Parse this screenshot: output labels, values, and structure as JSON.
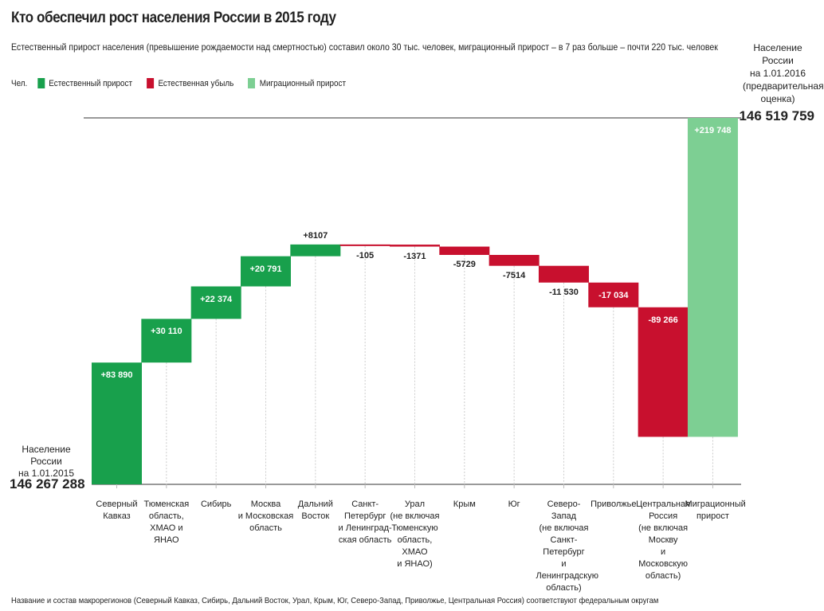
{
  "chart_data": {
    "type": "waterfall",
    "title": "Кто обеспечил рост населения России в 2015 году",
    "subtitle": "Естественный прирост населения (превышение рождаемости над смертностью) составил около 30 тыс. человек, миграционный прирост – в 7 раз больше – почти 220 тыс. человек",
    "unit_label": "Чел.",
    "legend": [
      {
        "label": "Естественный прирост",
        "color": "#18a04c"
      },
      {
        "label": "Естественная убыль",
        "color": "#c8102e"
      },
      {
        "label": "Миграционный прирост",
        "color": "#7dcf93"
      }
    ],
    "start": {
      "label": "Население России\nна 1.01.2015",
      "value": 146267288,
      "value_text": "146 267 288"
    },
    "end": {
      "label": "Население России\nна 1.01.2016\n(предварительная\nоценка)",
      "value": 146519759,
      "value_text": "146 519 759"
    },
    "categories": [
      {
        "label": "Северный\nКавказ",
        "value": 83890,
        "text": "+83 890",
        "kind": 0
      },
      {
        "label": "Тюменская\nобласть,\nХМАО и ЯНАО",
        "value": 30110,
        "text": "+30 110",
        "kind": 0
      },
      {
        "label": "Сибирь",
        "value": 22374,
        "text": "+22 374",
        "kind": 0
      },
      {
        "label": "Москва\nи Московская\nобласть",
        "value": 20791,
        "text": "+20 791",
        "kind": 0
      },
      {
        "label": "Дальний\nВосток",
        "value": 8107,
        "text": "+8107",
        "kind": 0
      },
      {
        "label": "Санкт-\nПетербург\nи Ленинград-\nская область",
        "value": -105,
        "text": "-105",
        "kind": 1
      },
      {
        "label": "Урал\n(не включая\nТюменскую\nобласть,\nХМАО\nи ЯНАО)",
        "value": -1371,
        "text": "-1371",
        "kind": 1
      },
      {
        "label": "Крым",
        "value": -5729,
        "text": "-5729",
        "kind": 1
      },
      {
        "label": "Юг",
        "value": -7514,
        "text": "-7514",
        "kind": 1
      },
      {
        "label": "Северо-Запад\n(не включая\nСанкт-Петербург\nи Ленинградскую\nобласть)",
        "value": -11530,
        "text": "-11 530",
        "kind": 1
      },
      {
        "label": "Приволжье",
        "value": -17034,
        "text": "-17 034",
        "kind": 1
      },
      {
        "label": "Центральная\nРоссия\n(не включая\nМоскву\nи Московскую\nобласть)",
        "value": -89266,
        "text": "-89 266",
        "kind": 1
      },
      {
        "label": "Миграционный\nприрост",
        "value": 219748,
        "text": "+219 748",
        "kind": 2
      }
    ],
    "footnote": "Название и состав макрорегионов (Северный Кавказ, Сибирь, Дальний Восток, Урал, Крым, Юг, Северо-Запад, Приволжье, Центральная Россия) соответствуют федеральным округам"
  }
}
